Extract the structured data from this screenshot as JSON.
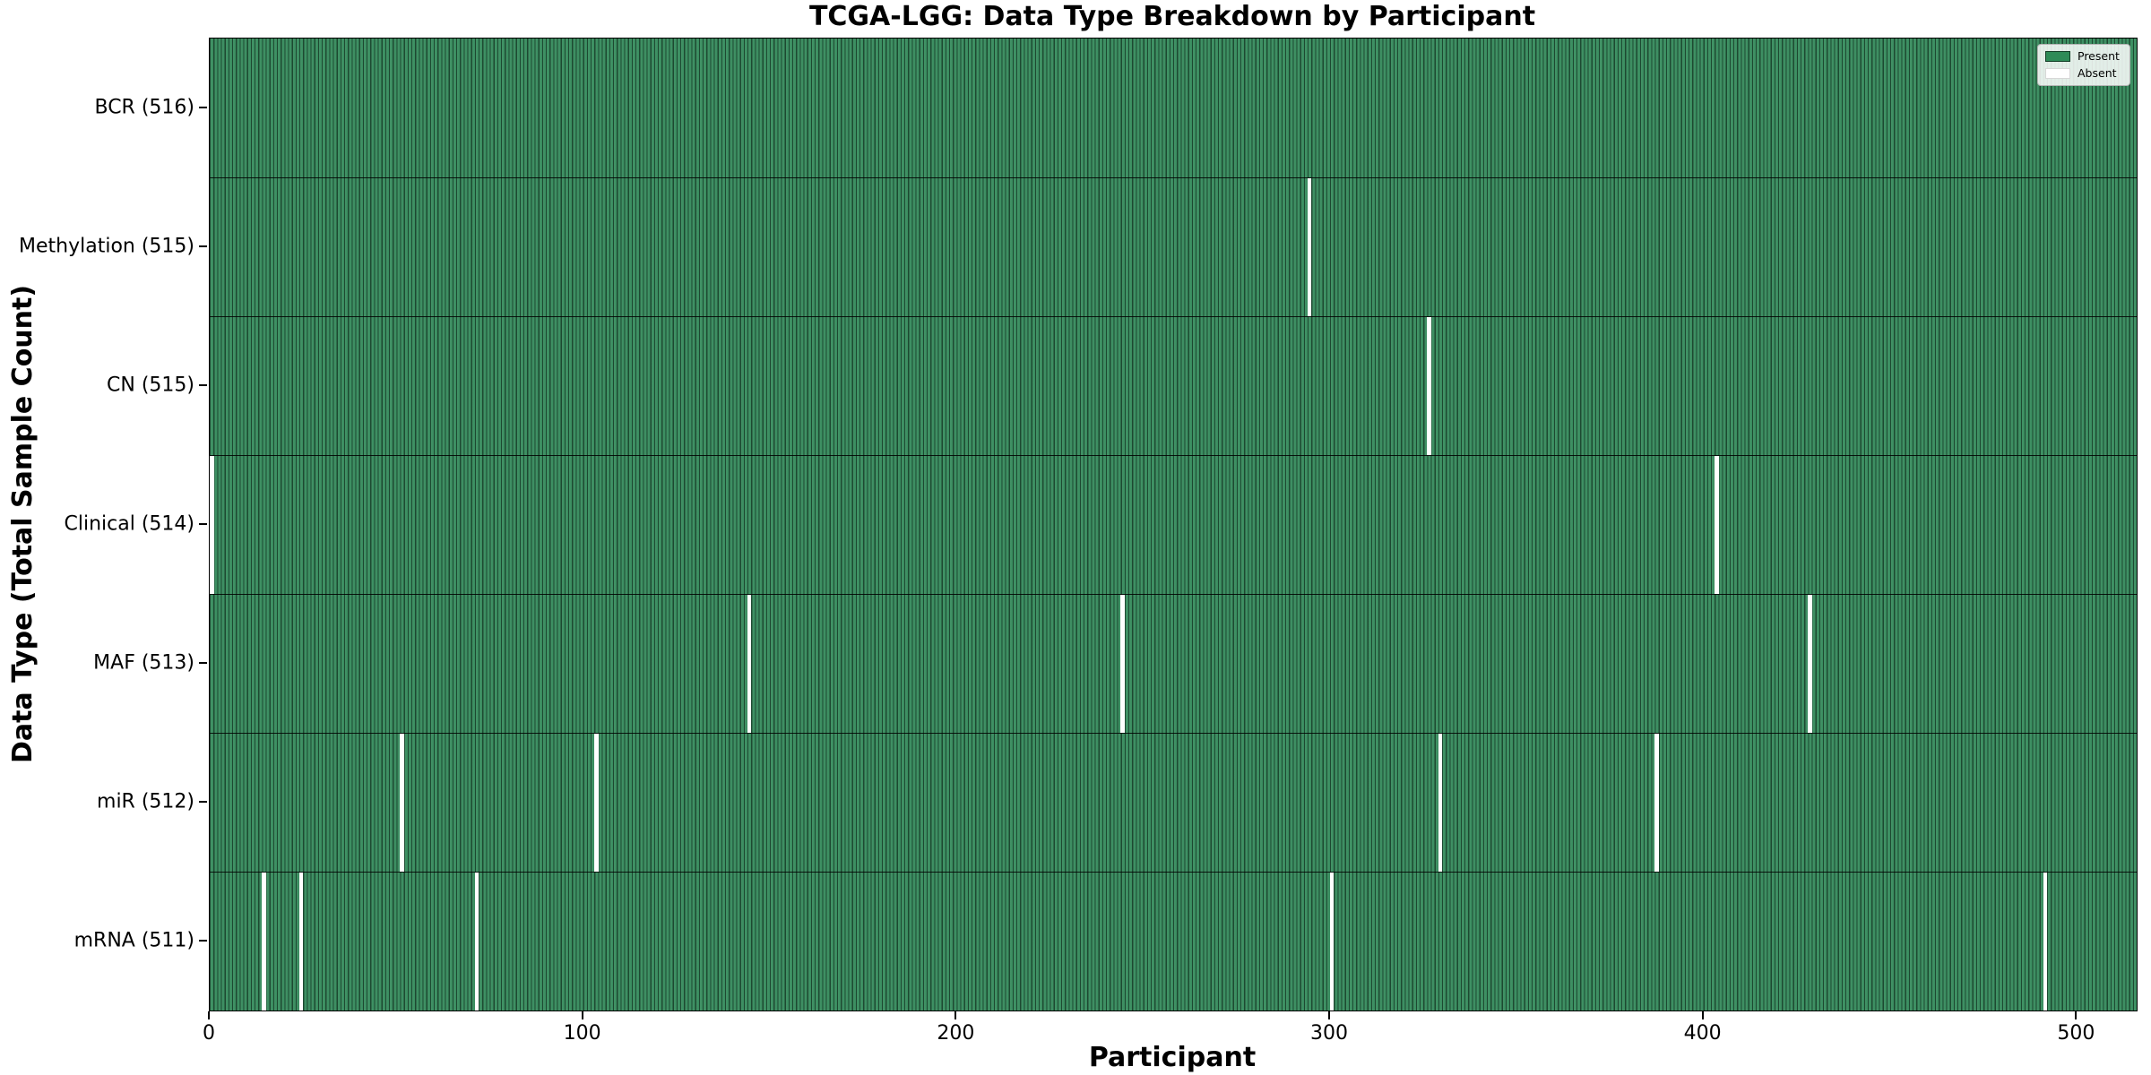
{
  "figure": {
    "title": "TCGA-LGG: Data Type Breakdown by Participant",
    "xlabel": "Participant",
    "ylabel": "Data Type (Total Sample Count)"
  },
  "legend": {
    "items": [
      {
        "label": "Present",
        "color": "#2e8b57"
      },
      {
        "label": "Absent",
        "color": "#ffffff"
      }
    ],
    "position": "upper right"
  },
  "chart_data": {
    "type": "heatmap",
    "title": "TCGA-LGG: Data Type Breakdown by Participant",
    "xlabel": "Participant",
    "ylabel": "Data Type (Total Sample Count)",
    "x_range": [
      0,
      516
    ],
    "n_participants": 516,
    "x_ticks": [
      0,
      100,
      200,
      300,
      400,
      500
    ],
    "x_tick_labels": [
      "0",
      "100",
      "200",
      "300",
      "400",
      "500"
    ],
    "grid": false,
    "present_color": "#2e8b57",
    "absent_color": "#ffffff",
    "cell_edge_color": "rgba(0,0,0,0.48)",
    "legend_entries": [
      "Present",
      "Absent"
    ],
    "legend_position": "upper right",
    "rows": [
      {
        "data_type": "BCR",
        "label": "BCR (516)",
        "total": 516,
        "absent_participants": []
      },
      {
        "data_type": "Methylation",
        "label": "Methylation (515)",
        "total": 515,
        "absent_participants": [
          294
        ]
      },
      {
        "data_type": "CN",
        "label": "CN (515)",
        "total": 515,
        "absent_participants": [
          326
        ]
      },
      {
        "data_type": "Clinical",
        "label": "Clinical (514)",
        "total": 514,
        "absent_participants": [
          0,
          403
        ]
      },
      {
        "data_type": "MAF",
        "label": "MAF (513)",
        "total": 513,
        "absent_participants": [
          144,
          244,
          428
        ]
      },
      {
        "data_type": "miR",
        "label": "miR (512)",
        "total": 512,
        "absent_participants": [
          51,
          103,
          329,
          387
        ]
      },
      {
        "data_type": "mRNA",
        "label": "mRNA (511)",
        "total": 511,
        "absent_participants": [
          14,
          24,
          71,
          300,
          491
        ]
      }
    ]
  }
}
